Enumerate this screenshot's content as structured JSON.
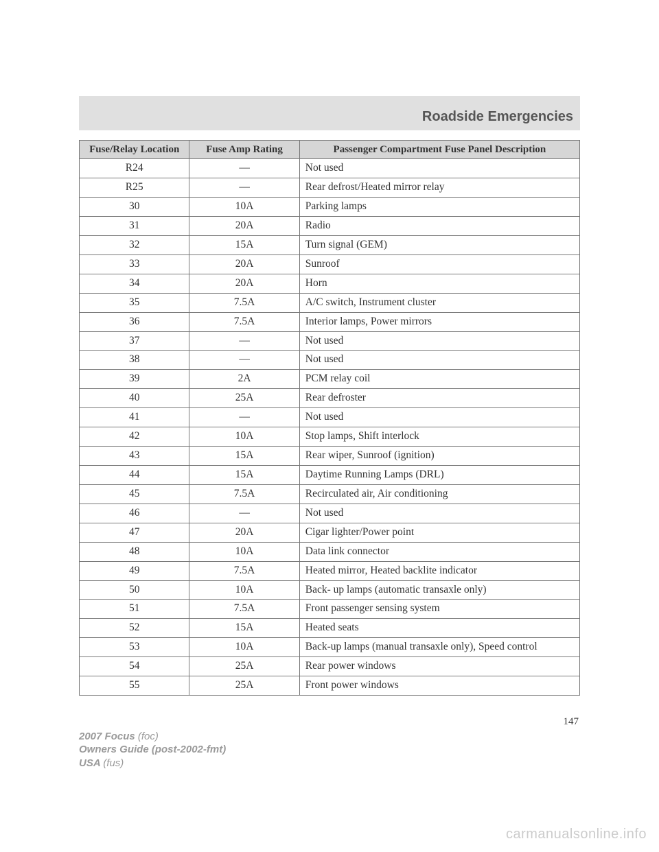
{
  "header": {
    "title": "Roadside Emergencies"
  },
  "table": {
    "columns": [
      "Fuse/Relay Location",
      "Fuse Amp Rating",
      "Passenger Compartment Fuse Panel Description"
    ],
    "header_bg": "#d6d6d6",
    "border_color": "#777777",
    "font_size": 15.5,
    "rows": [
      {
        "loc": "R24",
        "amp": "—",
        "desc": "Not used"
      },
      {
        "loc": "R25",
        "amp": "—",
        "desc": "Rear defrost/Heated mirror relay"
      },
      {
        "loc": "30",
        "amp": "10A",
        "desc": "Parking lamps"
      },
      {
        "loc": "31",
        "amp": "20A",
        "desc": "Radio"
      },
      {
        "loc": "32",
        "amp": "15A",
        "desc": "Turn signal (GEM)"
      },
      {
        "loc": "33",
        "amp": "20A",
        "desc": "Sunroof"
      },
      {
        "loc": "34",
        "amp": "20A",
        "desc": "Horn"
      },
      {
        "loc": "35",
        "amp": "7.5A",
        "desc": "A/C switch, Instrument cluster"
      },
      {
        "loc": "36",
        "amp": "7.5A",
        "desc": "Interior lamps, Power mirrors"
      },
      {
        "loc": "37",
        "amp": "—",
        "desc": "Not used"
      },
      {
        "loc": "38",
        "amp": "—",
        "desc": "Not used"
      },
      {
        "loc": "39",
        "amp": "2A",
        "desc": "PCM relay coil"
      },
      {
        "loc": "40",
        "amp": "25A",
        "desc": "Rear defroster"
      },
      {
        "loc": "41",
        "amp": "—",
        "desc": "Not used"
      },
      {
        "loc": "42",
        "amp": "10A",
        "desc": "Stop lamps, Shift interlock"
      },
      {
        "loc": "43",
        "amp": "15A",
        "desc": "Rear wiper, Sunroof (ignition)"
      },
      {
        "loc": "44",
        "amp": "15A",
        "desc": "Daytime Running Lamps (DRL)"
      },
      {
        "loc": "45",
        "amp": "7.5A",
        "desc": "Recirculated air, Air conditioning"
      },
      {
        "loc": "46",
        "amp": "—",
        "desc": "Not used"
      },
      {
        "loc": "47",
        "amp": "20A",
        "desc": "Cigar lighter/Power point"
      },
      {
        "loc": "48",
        "amp": "10A",
        "desc": "Data link connector"
      },
      {
        "loc": "49",
        "amp": "7.5A",
        "desc": "Heated mirror, Heated backlite indicator"
      },
      {
        "loc": "50",
        "amp": "10A",
        "desc": "Back- up lamps (automatic transaxle only)"
      },
      {
        "loc": "51",
        "amp": "7.5A",
        "desc": "Front passenger sensing system"
      },
      {
        "loc": "52",
        "amp": "15A",
        "desc": "Heated seats"
      },
      {
        "loc": "53",
        "amp": "10A",
        "desc": "Back-up lamps (manual transaxle only), Speed control"
      },
      {
        "loc": "54",
        "amp": "25A",
        "desc": "Rear power windows"
      },
      {
        "loc": "55",
        "amp": "25A",
        "desc": "Front power windows"
      }
    ]
  },
  "page_number": "147",
  "footer": {
    "line1a": "2007 Focus ",
    "line1b": "(foc)",
    "line2": "Owners Guide (post-2002-fmt)",
    "line3a": "USA ",
    "line3b": "(fus)"
  },
  "watermark": "carmanualsonline.info"
}
